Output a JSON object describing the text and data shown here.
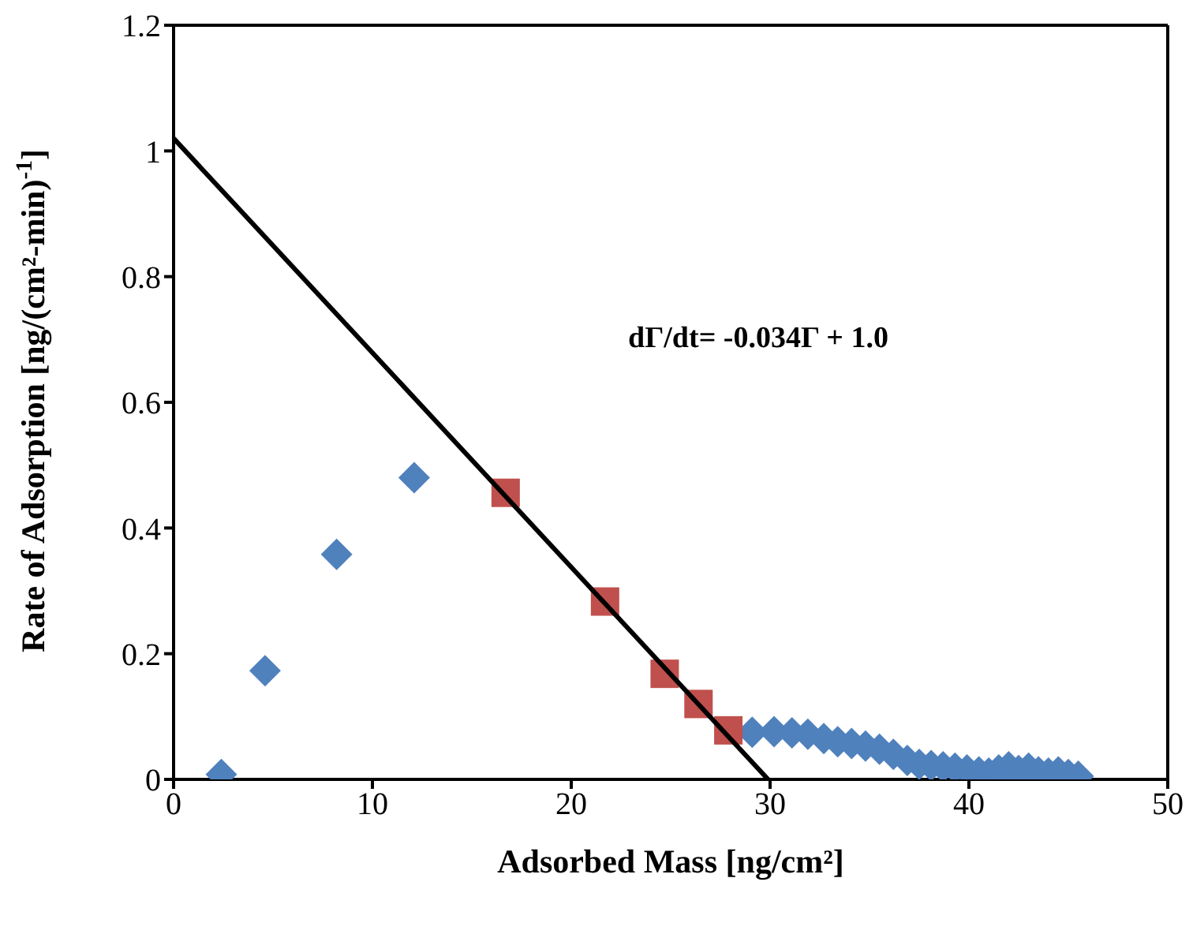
{
  "chart_data": {
    "type": "scatter",
    "xlabel": "Adsorbed Mass [ng/cm²]",
    "ylabel": "Rate of Adsorption [ng/(cm²-min)$^{-1}$]",
    "xlim": [
      0,
      50
    ],
    "xticks": [
      0,
      10,
      20,
      30,
      40,
      50
    ],
    "ylim": [
      0,
      1.2
    ],
    "yticks": [
      0,
      0.2,
      0.4,
      0.6,
      0.8,
      1,
      1.2
    ],
    "annotations": [
      "dΓ/dt= -0.034Γ + 1.0"
    ],
    "series": [
      {
        "marker": "diamond",
        "color": "#4f81bd",
        "x": [
          2.4,
          4.6,
          8.2,
          12.1,
          29.1,
          30.2,
          31.1,
          31.9,
          32.7,
          33.4,
          34.1,
          34.8,
          35.5,
          36.2,
          36.9,
          37.5,
          38.1,
          38.7,
          39.3,
          39.9,
          40.5,
          41.0,
          41.5,
          42.0,
          42.5,
          43.0,
          43.5,
          44.0,
          44.5,
          45.0,
          45.5
        ],
        "values": [
          0.008,
          0.173,
          0.358,
          0.48,
          0.075,
          0.076,
          0.074,
          0.072,
          0.065,
          0.06,
          0.057,
          0.053,
          0.048,
          0.04,
          0.03,
          0.024,
          0.022,
          0.02,
          0.018,
          0.015,
          0.012,
          0.01,
          0.015,
          0.02,
          0.014,
          0.018,
          0.012,
          0.01,
          0.012,
          0.008,
          0.005
        ]
      },
      {
        "marker": "square",
        "color": "#c0504d",
        "x": [
          16.7,
          21.7,
          24.7,
          26.4,
          27.9
        ],
        "values": [
          0.456,
          0.283,
          0.168,
          0.12,
          0.078
        ]
      },
      {
        "type": "line",
        "marker": "none",
        "color": "#000000",
        "x": [
          0,
          29.9
        ],
        "values": [
          1.02,
          0
        ]
      }
    ]
  }
}
